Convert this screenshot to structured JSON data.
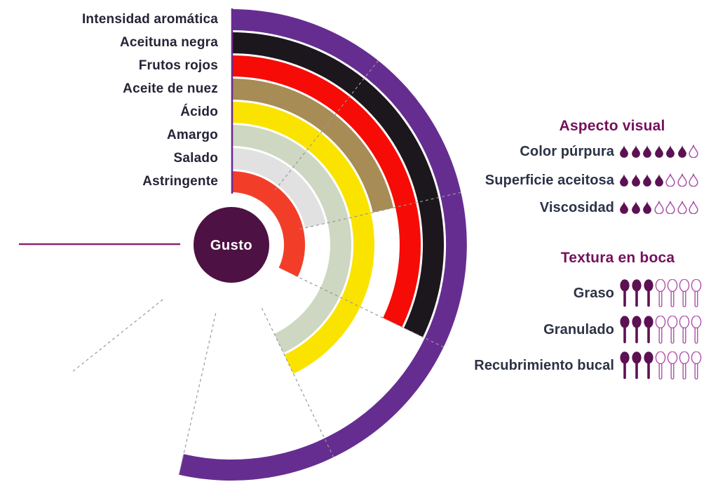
{
  "colors": {
    "ring_purple": "#662d91",
    "ring_black": "#1c171c",
    "ring_red": "#f70b06",
    "ring_tan": "#a78c55",
    "ring_yellow": "#fbe300",
    "ring_sage": "#cdd7c1",
    "ring_gray": "#e2e1e1",
    "ring_orange_red": "#f23e29",
    "center_circle": "#4e1144",
    "center_label_text": "#ffffff",
    "heading_magenta": "#74115c",
    "icon_fill": "#5c1153",
    "icon_outline": "#ab52a6",
    "wheel_label_text": "#272337",
    "row_label_text": "#2c3246",
    "gridline": "#999999",
    "start_line": "#6c2a90",
    "max_line": "#8b2472"
  },
  "chart_data": [
    {
      "type": "radial_bar",
      "title": "Gusto",
      "center_label": "Gusto",
      "scale": {
        "min": 0,
        "max": 7,
        "start_angle_deg": 0,
        "max_angle_deg": 270,
        "gridlines_at_units": [
          1,
          2,
          3,
          4,
          5,
          6
        ],
        "grid_style": "dashed"
      },
      "categories": [
        "Intensidad aromática",
        "Aceituna negra",
        "Frutos rojos",
        "Aceite de nuez",
        "Ácido",
        "Amargo",
        "Salado",
        "Astringente"
      ],
      "values": [
        5,
        3,
        3,
        2,
        4,
        4,
        2,
        3
      ],
      "bar_colors": [
        "#662d91",
        "#1c171c",
        "#f70b06",
        "#a78c55",
        "#fbe300",
        "#cdd7c1",
        "#e2e1e1",
        "#f23e29"
      ],
      "legend_position": "left",
      "ring_order": "outermost_to_innermost"
    },
    {
      "type": "pictograph",
      "title": "Aspecto visual",
      "icon": "droplet-icon",
      "max_icons": 7,
      "categories": [
        "Color púrpura",
        "Superficie aceitosa",
        "Viscosidad"
      ],
      "values": [
        6,
        4,
        3
      ]
    },
    {
      "type": "pictograph",
      "title": "Textura en boca",
      "icon": "spoon-icon",
      "max_icons": 7,
      "categories": [
        "Graso",
        "Granulado",
        "Recubrimiento bucal"
      ],
      "values": [
        3,
        3,
        3
      ]
    }
  ]
}
